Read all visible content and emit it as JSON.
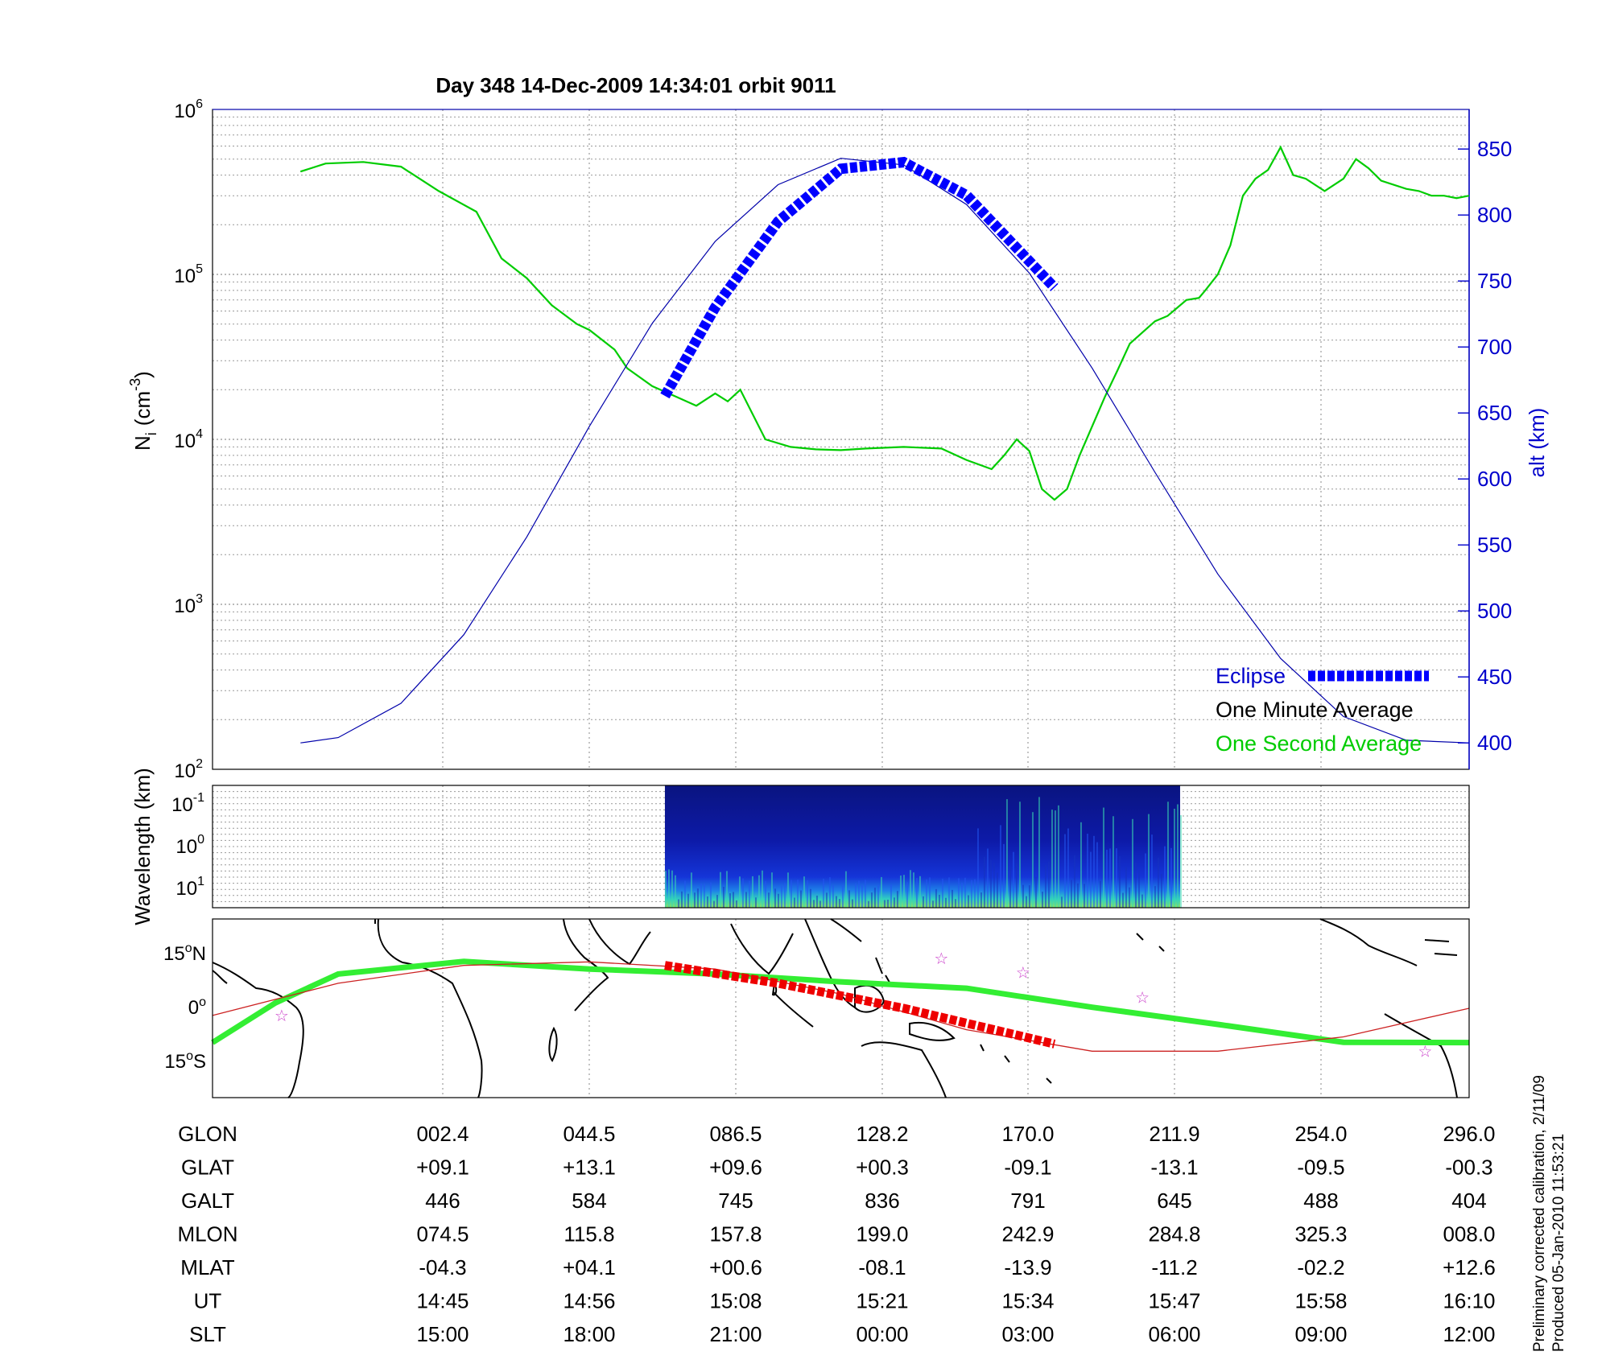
{
  "title": "Day 348  14-Dec-2009 14:34:01   orbit 9011",
  "colors": {
    "one_minute": "#000000",
    "one_second": "#00cc00",
    "altitude": "#0000aa",
    "eclipse": "#0000ff",
    "ground_track": "#33ee33",
    "magnetic_equator": "#cc2222",
    "track_eclipse": "#ee0000",
    "stars": "#cc44cc",
    "coastline": "#000000"
  },
  "chart_data": [
    {
      "type": "line",
      "panel": "density",
      "ylabel_main": "N",
      "ylabel_sub": "i",
      "ylabel_unit": "(cm",
      "ylabel_exp": "-3",
      "ylabel_close": ")",
      "ylabel_right": "alt (km)",
      "yscale": "log",
      "ylim": [
        100,
        1000000
      ],
      "y_ticks": [
        {
          "base": "10",
          "exp": "2",
          "value": 100
        },
        {
          "base": "10",
          "exp": "3",
          "value": 1000
        },
        {
          "base": "10",
          "exp": "4",
          "value": 10000
        },
        {
          "base": "10",
          "exp": "5",
          "value": 100000
        },
        {
          "base": "10",
          "exp": "6",
          "value": 1000000
        }
      ],
      "y2lim": [
        380,
        880
      ],
      "y2_ticks": [
        "400",
        "450",
        "500",
        "550",
        "600",
        "650",
        "700",
        "750",
        "800",
        "850"
      ],
      "xlim": [
        0,
        1
      ],
      "grid": true,
      "legend_position": "bottom-right",
      "legend": [
        {
          "label": "Eclipse",
          "color": "#0000ff",
          "style": "thick-dashed"
        },
        {
          "label": "One Minute Average",
          "color": "#000000",
          "style": "none"
        },
        {
          "label": "One Second Average",
          "color": "#00cc00",
          "style": "none"
        }
      ],
      "series": [
        {
          "name": "One Minute Average",
          "axis": "left",
          "x": [
            0.07,
            0.09,
            0.12,
            0.15,
            0.18,
            0.21,
            0.23,
            0.25,
            0.27,
            0.29,
            0.3,
            0.32,
            0.33,
            0.35,
            0.37,
            0.385,
            0.4,
            0.41,
            0.42,
            0.44,
            0.46,
            0.48,
            0.5,
            0.52,
            0.55,
            0.58,
            0.6,
            0.62,
            0.63,
            0.64,
            0.65,
            0.66,
            0.67,
            0.68,
            0.69,
            0.7,
            0.71,
            0.72,
            0.73,
            0.75,
            0.76,
            0.775,
            0.785,
            0.79,
            0.8,
            0.81,
            0.82,
            0.83,
            0.84,
            0.85,
            0.86,
            0.87,
            0.885,
            0.9,
            0.91,
            0.92,
            0.93,
            0.95,
            0.96,
            0.97,
            0.98,
            0.99,
            1.0
          ],
          "y": [
            420000,
            470000,
            480000,
            450000,
            320000,
            240000,
            125000,
            95000,
            65000,
            50000,
            46000,
            35000,
            27000,
            21000,
            18000,
            16000,
            19000,
            17000,
            20000,
            10000,
            9000,
            8700,
            8600,
            8800,
            9000,
            8800,
            7500,
            6600,
            8000,
            10000,
            8500,
            5000,
            4300,
            5000,
            8000,
            12000,
            18000,
            26000,
            38000,
            52000,
            56000,
            70000,
            72000,
            80000,
            100000,
            150000,
            300000,
            380000,
            430000,
            590000,
            400000,
            380000,
            320000,
            380000,
            500000,
            440000,
            370000,
            330000,
            320000,
            300000,
            300000,
            290000,
            300000
          ]
        },
        {
          "name": "One Second Average",
          "axis": "left",
          "x": [
            0.07,
            0.09,
            0.12,
            0.15,
            0.18,
            0.21,
            0.23,
            0.25,
            0.27,
            0.29,
            0.3,
            0.32,
            0.33,
            0.35,
            0.37,
            0.385,
            0.4,
            0.41,
            0.42,
            0.44,
            0.46,
            0.48,
            0.5,
            0.52,
            0.55,
            0.58,
            0.6,
            0.62,
            0.63,
            0.64,
            0.65,
            0.66,
            0.67,
            0.68,
            0.69,
            0.7,
            0.71,
            0.72,
            0.73,
            0.75,
            0.76,
            0.775,
            0.785,
            0.79,
            0.8,
            0.81,
            0.82,
            0.83,
            0.84,
            0.85,
            0.86,
            0.87,
            0.885,
            0.9,
            0.91,
            0.92,
            0.93,
            0.95,
            0.96,
            0.97,
            0.98,
            0.99,
            1.0
          ],
          "y": [
            420000,
            470000,
            480000,
            450000,
            320000,
            240000,
            125000,
            95000,
            65000,
            50000,
            46000,
            35000,
            27000,
            21000,
            18000,
            16000,
            19000,
            17000,
            20000,
            10000,
            9000,
            8700,
            8600,
            8800,
            9000,
            8800,
            7500,
            6600,
            8000,
            10000,
            8500,
            5000,
            4300,
            5000,
            8000,
            12000,
            18000,
            26000,
            38000,
            52000,
            56000,
            70000,
            72000,
            80000,
            100000,
            150000,
            300000,
            380000,
            430000,
            590000,
            400000,
            380000,
            320000,
            380000,
            500000,
            440000,
            370000,
            330000,
            320000,
            300000,
            300000,
            290000,
            300000
          ]
        },
        {
          "name": "alt (km)",
          "axis": "right",
          "x": [
            0.07,
            0.1,
            0.15,
            0.2,
            0.25,
            0.3,
            0.35,
            0.4,
            0.45,
            0.5,
            0.55,
            0.6,
            0.65,
            0.7,
            0.75,
            0.8,
            0.85,
            0.9,
            0.95,
            1.0
          ],
          "y": [
            400,
            404,
            430,
            482,
            556,
            640,
            718,
            780,
            823,
            843,
            838,
            808,
            756,
            684,
            605,
            528,
            464,
            420,
            402,
            400
          ]
        },
        {
          "name": "Eclipse",
          "axis": "right",
          "x": [
            0.36,
            0.4,
            0.45,
            0.5,
            0.55,
            0.6,
            0.64,
            0.67
          ],
          "y": [
            663,
            730,
            795,
            835,
            840,
            815,
            775,
            745
          ]
        }
      ]
    },
    {
      "type": "heatmap",
      "panel": "spectrogram",
      "ylabel": "Wavelength (km)",
      "y_ticks": [
        {
          "base": "10",
          "exp": "-1"
        },
        {
          "base": "10",
          "exp": "0"
        },
        {
          "base": "10",
          "exp": "1"
        }
      ],
      "xlim": [
        0,
        1
      ],
      "data_range_x": [
        0.36,
        0.77
      ]
    },
    {
      "type": "line",
      "panel": "map",
      "y_ticks": [
        {
          "value": "15",
          "unit": "o",
          "hemi": "N"
        },
        {
          "value": "0",
          "unit": "o",
          "hemi": ""
        },
        {
          "value": "15",
          "unit": "o",
          "hemi": "S"
        }
      ],
      "ylim": [
        -25,
        25
      ],
      "xlim": [
        0,
        1
      ],
      "series": [
        {
          "name": "ground track",
          "x": [
            0.0,
            0.05,
            0.1,
            0.2,
            0.3,
            0.4,
            0.5,
            0.6,
            0.7,
            0.8,
            0.9,
            1.0
          ],
          "y": [
            -9.6,
            1.5,
            9.6,
            13.1,
            11.0,
            9.6,
            7.4,
            5.6,
            0.3,
            -4.5,
            -9.5,
            -9.6
          ]
        },
        {
          "name": "magnetic equator",
          "x": [
            0.0,
            0.1,
            0.2,
            0.3,
            0.4,
            0.5,
            0.6,
            0.7,
            0.8,
            0.9,
            1.0
          ],
          "y": [
            -2,
            7,
            12,
            13,
            11,
            4,
            -6,
            -12,
            -12,
            -8,
            0
          ]
        },
        {
          "name": "eclipse segment",
          "x": [
            0.36,
            0.45,
            0.55,
            0.67
          ],
          "y": [
            12,
            7,
            0,
            -10
          ]
        }
      ],
      "stars": [
        [
          0.055,
          -2
        ],
        [
          0.58,
          14
        ],
        [
          0.645,
          10
        ],
        [
          0.74,
          3
        ],
        [
          0.965,
          -12
        ]
      ]
    }
  ],
  "table": {
    "rows": [
      {
        "label": "GLON",
        "values": [
          "002.4",
          "044.5",
          "086.5",
          "128.2",
          "170.0",
          "211.9",
          "254.0",
          "296.0"
        ]
      },
      {
        "label": "GLAT",
        "values": [
          "+09.1",
          "+13.1",
          "+09.6",
          "+00.3",
          "-09.1",
          "-13.1",
          "-09.5",
          "-00.3"
        ]
      },
      {
        "label": "GALT",
        "values": [
          "446",
          "584",
          "745",
          "836",
          "791",
          "645",
          "488",
          "404"
        ]
      },
      {
        "label": "MLON",
        "values": [
          "074.5",
          "115.8",
          "157.8",
          "199.0",
          "242.9",
          "284.8",
          "325.3",
          "008.0"
        ]
      },
      {
        "label": "MLAT",
        "values": [
          "-04.3",
          "+04.1",
          "+00.6",
          "-08.1",
          "-13.9",
          "-11.2",
          "-02.2",
          "+12.6"
        ]
      },
      {
        "label": "UT",
        "values": [
          "14:45",
          "14:56",
          "15:08",
          "15:21",
          "15:34",
          "15:47",
          "15:58",
          "16:10"
        ]
      },
      {
        "label": "SLT",
        "values": [
          "15:00",
          "18:00",
          "21:00",
          "00:00",
          "03:00",
          "06:00",
          "09:00",
          "12:00"
        ]
      }
    ]
  },
  "footnote": {
    "line1": "Preliminary corrected calibration, 2/11/09",
    "line2": "Produced 05-Jan-2010 11:53:21"
  }
}
